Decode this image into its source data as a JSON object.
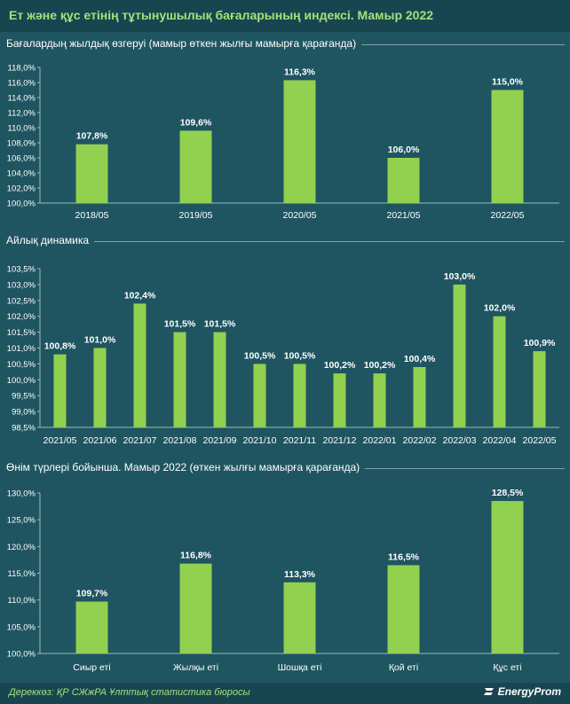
{
  "header": {
    "title": "Ет және құс етінің тұтынушылық бағаларының индексі. Мамыр 2022"
  },
  "footer": {
    "source": "Дереккөз: ҚР СЖжРА Ұлттық статистика бюросы",
    "brand": "EnergyProm"
  },
  "colors": {
    "bar": "#92d050",
    "background": "#1f5560",
    "title": "#a6e07a"
  },
  "chart_data": [
    {
      "type": "bar",
      "title": "Бағалардың жылдық өзгеруі (мамыр өткен жылғы мамырға қарағанда)",
      "categories": [
        "2018/05",
        "2019/05",
        "2020/05",
        "2021/05",
        "2022/05"
      ],
      "values": [
        107.8,
        109.6,
        116.3,
        106.0,
        115.0
      ],
      "value_labels": [
        "107,8%",
        "109,6%",
        "116,3%",
        "106,0%",
        "115,0%"
      ],
      "yticks": [
        "100,0%",
        "102,0%",
        "104,0%",
        "106,0%",
        "108,0%",
        "110,0%",
        "112,0%",
        "114,0%",
        "116,0%",
        "118,0%"
      ],
      "ylim": [
        100,
        118
      ]
    },
    {
      "type": "bar",
      "title": "Айлық динамика",
      "categories": [
        "2021/05",
        "2021/06",
        "2021/07",
        "2021/08",
        "2021/09",
        "2021/10",
        "2021/11",
        "2021/12",
        "2022/01",
        "2022/02",
        "2022/03",
        "2022/04",
        "2022/05"
      ],
      "values": [
        100.8,
        101.0,
        102.4,
        101.5,
        101.5,
        100.5,
        100.5,
        100.2,
        100.2,
        100.4,
        103.0,
        102.0,
        100.9
      ],
      "value_labels": [
        "100,8%",
        "101,0%",
        "102,4%",
        "101,5%",
        "101,5%",
        "100,5%",
        "100,5%",
        "100,2%",
        "100,2%",
        "100,4%",
        "103,0%",
        "102,0%",
        "100,9%"
      ],
      "yticks": [
        "98,5%",
        "99,0%",
        "99,5%",
        "100,0%",
        "100,5%",
        "101,0%",
        "101,5%",
        "102,0%",
        "102,5%",
        "103,0%",
        "103,5%"
      ],
      "ylim": [
        98.5,
        103.5
      ]
    },
    {
      "type": "bar",
      "title": "Өнім түрлері бойынша. Мамыр 2022 (өткен жылғы мамырға қарағанда)",
      "categories": [
        "Сиыр еті",
        "Жылқы еті",
        "Шошқа еті",
        "Қой еті",
        "Құс еті"
      ],
      "values": [
        109.7,
        116.8,
        113.3,
        116.5,
        128.5
      ],
      "value_labels": [
        "109,7%",
        "116,8%",
        "113,3%",
        "116,5%",
        "128,5%"
      ],
      "yticks": [
        "100,0%",
        "105,0%",
        "110,0%",
        "115,0%",
        "120,0%",
        "125,0%",
        "130,0%"
      ],
      "ylim": [
        100,
        130
      ]
    }
  ]
}
